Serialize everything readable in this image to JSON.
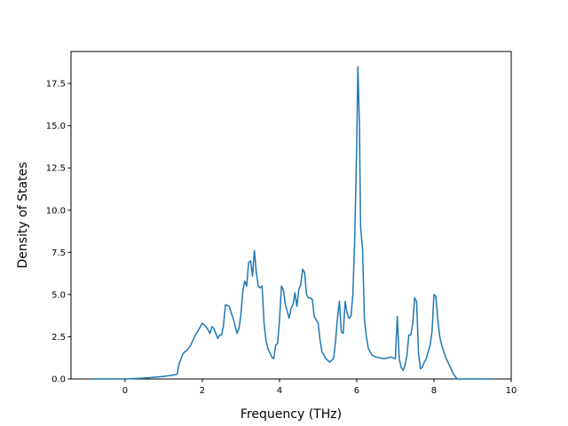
{
  "chart_data": {
    "type": "line",
    "title": "",
    "xlabel": "Frequency (THz)",
    "ylabel": "Density of States",
    "xlim": [
      -1.4,
      10.0
    ],
    "ylim": [
      0,
      19.4
    ],
    "x_ticks": [
      0,
      2,
      4,
      6,
      8,
      10
    ],
    "x_tick_labels": [
      "0",
      "2",
      "4",
      "6",
      "8",
      "10"
    ],
    "y_ticks": [
      0.0,
      2.5,
      5.0,
      7.5,
      10.0,
      12.5,
      15.0,
      17.5
    ],
    "y_tick_labels": [
      "0.0",
      "2.5",
      "5.0",
      "7.5",
      "10.0",
      "12.5",
      "15.0",
      "17.5"
    ],
    "grid": false,
    "legend": "none",
    "colors": {
      "line": "#1f77b4",
      "axes": "#000000"
    },
    "series": [
      {
        "x": [
          -0.85,
          0.0,
          0.5,
          1.0,
          1.3,
          1.35,
          1.4,
          1.5,
          1.6,
          1.7,
          1.8,
          1.9,
          2.0,
          2.1,
          2.15,
          2.2,
          2.25,
          2.3,
          2.4,
          2.45,
          2.5,
          2.55,
          2.6,
          2.7,
          2.75,
          2.8,
          2.9,
          2.95,
          3.0,
          3.05,
          3.1,
          3.15,
          3.2,
          3.25,
          3.3,
          3.35,
          3.4,
          3.45,
          3.5,
          3.55,
          3.6,
          3.65,
          3.7,
          3.8,
          3.85,
          3.9,
          3.95,
          4.0,
          4.05,
          4.1,
          4.15,
          4.2,
          4.25,
          4.3,
          4.35,
          4.4,
          4.45,
          4.5,
          4.55,
          4.6,
          4.65,
          4.7,
          4.75,
          4.8,
          4.85,
          4.9,
          5.0,
          5.05,
          5.1,
          5.2,
          5.3,
          5.4,
          5.45,
          5.5,
          5.55,
          5.6,
          5.65,
          5.7,
          5.75,
          5.8,
          5.85,
          5.9,
          5.95,
          6.0,
          6.03,
          6.07,
          6.1,
          6.15,
          6.2,
          6.25,
          6.3,
          6.4,
          6.5,
          6.7,
          6.9,
          7.0,
          7.05,
          7.1,
          7.15,
          7.2,
          7.25,
          7.3,
          7.35,
          7.4,
          7.45,
          7.5,
          7.55,
          7.6,
          7.65,
          7.7,
          7.75,
          7.8,
          7.85,
          7.9,
          7.95,
          8.0,
          8.05,
          8.1,
          8.15,
          8.2,
          8.3,
          8.4,
          8.5,
          8.6,
          8.65,
          8.7,
          9.0,
          9.5
        ],
        "y": [
          0.0,
          0.0,
          0.05,
          0.15,
          0.25,
          0.3,
          0.9,
          1.5,
          1.7,
          2.0,
          2.5,
          2.9,
          3.3,
          3.1,
          2.9,
          2.7,
          3.1,
          3.0,
          2.4,
          2.6,
          2.6,
          3.2,
          4.4,
          4.3,
          3.9,
          3.6,
          2.7,
          3.0,
          3.8,
          5.2,
          5.8,
          5.5,
          6.9,
          7.0,
          6.1,
          7.6,
          6.3,
          5.5,
          5.4,
          5.5,
          3.3,
          2.3,
          1.8,
          1.3,
          1.2,
          2.0,
          2.1,
          3.5,
          5.5,
          5.3,
          4.4,
          4.0,
          3.6,
          4.2,
          4.4,
          5.1,
          4.3,
          5.3,
          5.6,
          6.5,
          6.3,
          5.0,
          4.8,
          4.8,
          4.7,
          3.7,
          3.3,
          2.3,
          1.6,
          1.2,
          1.0,
          1.2,
          2.2,
          3.6,
          4.6,
          2.8,
          2.7,
          4.6,
          3.9,
          3.6,
          3.7,
          5.0,
          8.5,
          14.0,
          18.5,
          15.0,
          9.0,
          7.7,
          3.5,
          2.5,
          1.8,
          1.4,
          1.3,
          1.2,
          1.3,
          1.2,
          3.7,
          1.2,
          0.7,
          0.5,
          0.8,
          1.4,
          2.6,
          2.6,
          3.3,
          4.8,
          4.6,
          1.5,
          0.6,
          0.7,
          1.0,
          1.2,
          1.6,
          2.0,
          2.8,
          5.0,
          4.9,
          3.5,
          2.5,
          2.0,
          1.3,
          0.8,
          0.3,
          0.0,
          0.0,
          0.0,
          0.0,
          0.0
        ]
      }
    ]
  }
}
